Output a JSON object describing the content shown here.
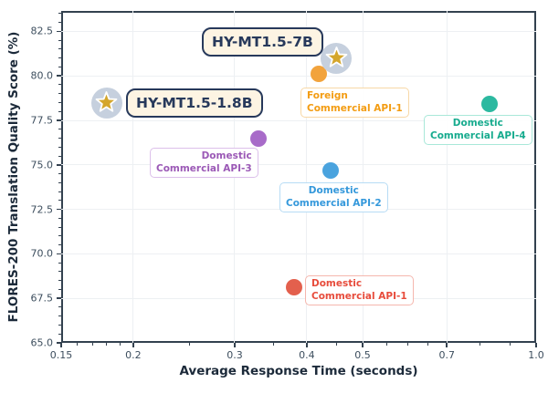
{
  "chart_data": {
    "type": "scatter",
    "title": "",
    "xlabel": "Average Response Time (seconds)",
    "ylabel": "FLORES-200 Translation Quality Score (%)",
    "x_scale": "log",
    "xlim": [
      0.15,
      1.0
    ],
    "ylim": [
      65.0,
      83.65
    ],
    "grid": true,
    "legend_position": "none",
    "x_ticks": {
      "values": [
        0.15,
        0.2,
        0.3,
        0.4,
        0.5,
        0.7,
        1.0
      ],
      "labels": [
        "0.15",
        "0.2",
        "0.3",
        "0.4",
        "0.5",
        "0.7",
        "1.0"
      ]
    },
    "x_minor_ticks": [
      0.16,
      0.17,
      0.18,
      0.19,
      0.25,
      0.35,
      0.45,
      0.55,
      0.6,
      0.65,
      0.8,
      0.9
    ],
    "y_ticks": {
      "values": [
        65.0,
        67.5,
        70.0,
        72.5,
        75.0,
        77.5,
        80.0,
        82.5
      ],
      "labels": [
        "65.0",
        "67.5",
        "70.0",
        "72.5",
        "75.0",
        "77.5",
        "80.0",
        "82.5"
      ]
    },
    "y_minor_step": 0.5,
    "points": [
      {
        "id": "hy_mt15_7b",
        "name": "HY-MT1.5-7B",
        "x": 0.45,
        "y": 81.0,
        "marker": "star",
        "label_lines": [
          "HY-MT1.5-7B"
        ]
      },
      {
        "id": "hy_mt15_18b",
        "name": "HY-MT1.5-1.8B",
        "x": 0.18,
        "y": 78.5,
        "marker": "star",
        "label_lines": [
          "HY-MT1.5-1.8B"
        ]
      },
      {
        "id": "foreign_api_1",
        "name": "Foreign Commercial API-1",
        "x": 0.42,
        "y": 80.1,
        "marker": "circle",
        "color": "#f2a33c",
        "text_color": "#f39c12",
        "border_color": "#f8d8a6",
        "label_lines": [
          "Foreign",
          "Commercial API-1"
        ]
      },
      {
        "id": "domestic_api_4",
        "name": "Domestic Commercial API-4",
        "x": 0.83,
        "y": 78.4,
        "marker": "circle",
        "color": "#2cb9a0",
        "text_color": "#17ab8e",
        "border_color": "#a9e8d9",
        "label_lines": [
          "Domestic",
          "Commercial API-4"
        ]
      },
      {
        "id": "domestic_api_3",
        "name": "Domestic Commercial API-3",
        "x": 0.33,
        "y": 76.5,
        "marker": "circle",
        "color": "#a86bc9",
        "text_color": "#9b59b6",
        "border_color": "#dcc0ea",
        "label_lines": [
          "Domestic",
          "Commercial API-3"
        ]
      },
      {
        "id": "domestic_api_2",
        "name": "Domestic Commercial API-2",
        "x": 0.44,
        "y": 74.7,
        "marker": "circle",
        "color": "#4aa3de",
        "text_color": "#3498db",
        "border_color": "#b7dcf5",
        "label_lines": [
          "Domestic",
          "Commercial API-2"
        ]
      },
      {
        "id": "domestic_api_1",
        "name": "Domestic Commercial API-1",
        "x": 0.38,
        "y": 68.1,
        "marker": "circle",
        "color": "#e3604d",
        "text_color": "#e74c3c",
        "border_color": "#f5b7ae",
        "label_lines": [
          "Domestic",
          "Commercial API-1"
        ]
      }
    ],
    "colors": {
      "star_fill": "#d4a62c",
      "star_stroke": "#ffffff",
      "star_badge": "#c6d0de",
      "model_box_bg": "#fdf4e3",
      "model_box_border": "#27395b",
      "model_text": "#27395b",
      "spine": "#33414f",
      "grid": "#edf0f3",
      "tick_label": "#3d4e5e",
      "axis_label": "#1c2a3a",
      "background": "#ffffff"
    }
  }
}
